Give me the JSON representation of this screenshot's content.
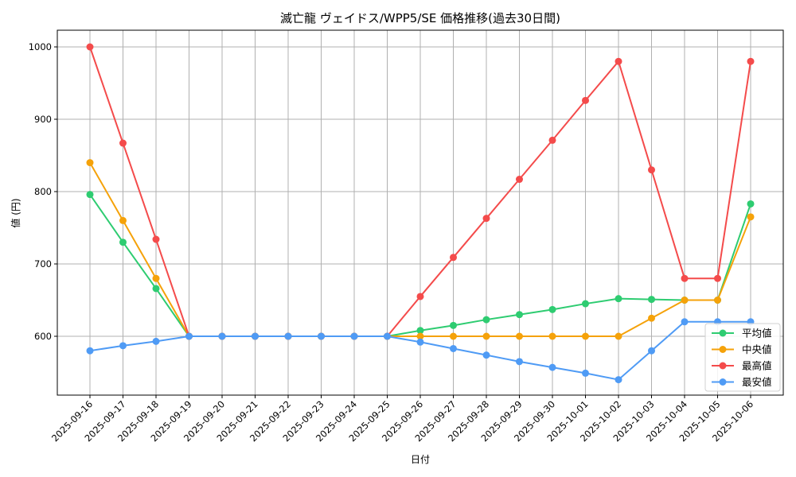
{
  "chart_data": {
    "type": "line",
    "title": "滅亡龍 ヴェイドス/WPP5/SE 価格推移(過去30日間)",
    "xlabel": "日付",
    "ylabel": "値 (円)",
    "ylim": [
      519,
      1023
    ],
    "yticks": [
      600,
      700,
      800,
      900,
      1000
    ],
    "grid": true,
    "legend_position": "lower right",
    "categories": [
      "2025-09-16",
      "2025-09-17",
      "2025-09-18",
      "2025-09-19",
      "2025-09-20",
      "2025-09-21",
      "2025-09-22",
      "2025-09-23",
      "2025-09-24",
      "2025-09-25",
      "2025-09-26",
      "2025-09-27",
      "2025-09-28",
      "2025-09-29",
      "2025-09-30",
      "2025-10-01",
      "2025-10-02",
      "2025-10-03",
      "2025-10-04",
      "2025-10-05",
      "2025-10-06"
    ],
    "series": [
      {
        "name": "平均値",
        "color": "#2ecc71",
        "values": [
          796,
          730,
          666,
          600,
          600,
          600,
          600,
          600,
          600,
          600,
          608,
          615,
          623,
          630,
          637,
          645,
          652,
          651,
          650,
          650,
          783
        ]
      },
      {
        "name": "中央値",
        "color": "#f5a20a",
        "values": [
          840,
          760,
          680,
          600,
          600,
          600,
          600,
          600,
          600,
          600,
          600,
          600,
          600,
          600,
          600,
          600,
          600,
          625,
          650,
          650,
          765
        ]
      },
      {
        "name": "最高値",
        "color": "#f44b4b",
        "values": [
          1000,
          867,
          734,
          600,
          600,
          600,
          600,
          600,
          600,
          600,
          655,
          709,
          763,
          817,
          871,
          926,
          980,
          830,
          680,
          680,
          980
        ]
      },
      {
        "name": "最安値",
        "color": "#4f9bf5",
        "values": [
          580,
          587,
          593,
          600,
          600,
          600,
          600,
          600,
          600,
          600,
          592,
          583,
          574,
          565,
          557,
          549,
          540,
          580,
          620,
          620,
          620
        ]
      }
    ]
  }
}
